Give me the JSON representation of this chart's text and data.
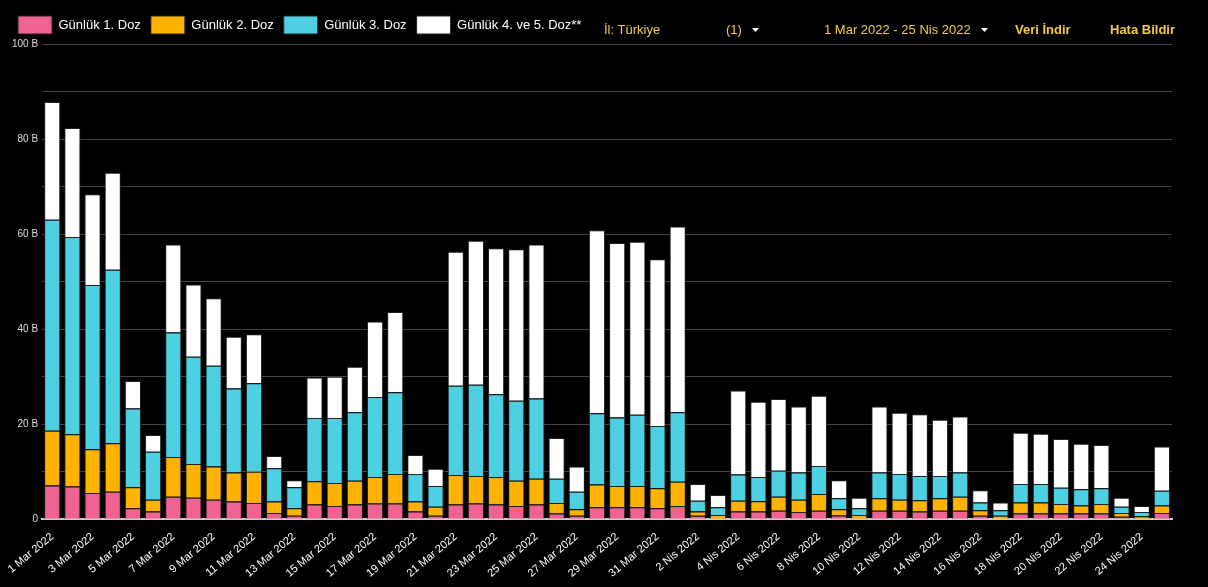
{
  "chart_data": {
    "type": "bar",
    "stacked": true,
    "legend": "top left",
    "grid": "y",
    "categories": [
      "1 Mar 2022",
      null,
      "3 Mar 2022",
      null,
      "5 Mar 2022",
      null,
      "7 Mar 2022",
      null,
      "9 Mar 2022",
      null,
      "11 Mar 2022",
      null,
      "13 Mar 2022",
      null,
      "15 Mar 2022",
      null,
      "17 Mar 2022",
      null,
      "19 Mar 2022",
      null,
      "21 Mar 2022",
      null,
      "23 Mar 2022",
      null,
      "25 Mar 2022",
      null,
      "27 Mar 2022",
      null,
      "29 Mar 2022",
      null,
      "31 Mar 2022",
      null,
      "2 Nis 2022",
      null,
      "4 Nis 2022",
      null,
      "6 Nis 2022",
      null,
      "8 Nis 2022",
      null,
      "10 Nis 2022",
      null,
      "12 Nis 2022",
      null,
      "14 Nis 2022",
      null,
      "16 Nis 2022",
      null,
      "18 Nis 2022",
      null,
      "20 Nis 2022",
      null,
      "22 Nis 2022",
      null,
      "24 Nis 2022",
      null
    ],
    "series": [
      {
        "name": "Günlük 1. Doz",
        "color": "#f06292",
        "values": [
          7.1,
          6.9,
          5.5,
          5.8,
          2.3,
          1.6,
          4.7,
          4.5,
          4.1,
          3.7,
          3.4,
          1.3,
          0.7,
          3.1,
          2.8,
          3.1,
          3.3,
          3.3,
          1.6,
          0.7,
          3.1,
          3.3,
          3.1,
          2.8,
          3.1,
          1.2,
          0.7,
          2.5,
          2.5,
          2.5,
          2.3,
          2.8,
          0.7,
          null,
          1.6,
          1.6,
          1.8,
          1.5,
          1.8,
          0.8,
          null,
          1.8,
          1.8,
          1.6,
          1.8,
          1.8,
          0.7,
          null,
          1.2,
          1.2,
          1.2,
          1.2,
          1.2,
          0.5,
          null,
          1.3
        ]
      },
      {
        "name": "Günlük 2. Doz",
        "color": "#ffb300",
        "values": [
          11.5,
          11.0,
          9.2,
          10.2,
          4.4,
          2.5,
          8.4,
          7.1,
          7.0,
          6.1,
          6.6,
          2.4,
          1.6,
          4.9,
          4.8,
          5.0,
          5.6,
          6.2,
          2.1,
          1.9,
          6.2,
          5.8,
          5.8,
          5.3,
          5.4,
          2.2,
          1.4,
          4.8,
          4.5,
          4.5,
          4.2,
          5.1,
          0.9,
          0.9,
          2.3,
          2.2,
          2.9,
          2.6,
          3.5,
          1.3,
          0.9,
          2.6,
          2.3,
          2.4,
          2.6,
          2.9,
          1.2,
          0.7,
          2.3,
          2.3,
          2.0,
          1.7,
          2.0,
          0.8,
          0.6,
          1.6
        ]
      },
      {
        "name": "Günlük 3. Doz",
        "color": "#4dd0e1",
        "values": [
          44.4,
          41.5,
          34.6,
          36.5,
          16.6,
          10.1,
          26.2,
          22.6,
          21.2,
          17.7,
          18.6,
          7.0,
          4.4,
          13.3,
          13.7,
          14.4,
          16.8,
          17.2,
          5.8,
          4.4,
          18.8,
          19.2,
          17.4,
          16.8,
          16.9,
          5.1,
          3.7,
          15.0,
          14.4,
          15.0,
          13.1,
          14.6,
          2.3,
          1.6,
          5.5,
          5.1,
          5.5,
          5.7,
          5.9,
          2.3,
          1.4,
          5.4,
          5.4,
          5.1,
          4.7,
          5.1,
          1.6,
          1.2,
          3.9,
          3.9,
          3.4,
          3.4,
          3.3,
          1.3,
          0.9,
          3.1
        ]
      },
      {
        "name": "Günlük 4. ve 5. Doz**",
        "color": "#ffffff",
        "values": [
          24.8,
          22.9,
          19.1,
          20.4,
          5.8,
          3.5,
          18.5,
          15.2,
          14.2,
          10.9,
          10.3,
          2.6,
          1.5,
          8.5,
          8.7,
          9.6,
          15.9,
          16.9,
          4.0,
          3.6,
          28.2,
          30.3,
          30.7,
          31.9,
          32.4,
          8.6,
          5.3,
          38.5,
          36.7,
          36.4,
          35.1,
          39.1,
          3.5,
          2.6,
          17.7,
          15.8,
          15.1,
          13.9,
          14.8,
          3.8,
          2.2,
          13.9,
          12.9,
          13.0,
          11.8,
          11.8,
          2.6,
          1.6,
          10.8,
          10.6,
          10.3,
          9.6,
          9.1,
          1.9,
          1.3,
          9.3
        ]
      }
    ],
    "ylim": [
      0,
      100
    ],
    "yticks": [
      0,
      {
        "value": 10,
        "label": null
      },
      {
        "value": 20,
        "label": "20 B"
      },
      {
        "value": 30,
        "label": null
      },
      {
        "value": 40,
        "label": "40 B"
      },
      {
        "value": 50,
        "label": null
      },
      {
        "value": 60,
        "label": "60 B"
      },
      {
        "value": 70,
        "label": null
      },
      {
        "value": 80,
        "label": "80 B"
      },
      {
        "value": 90,
        "label": null
      },
      {
        "value": 100,
        "label": "100 B"
      }
    ],
    "annotations": [
      "İl: Türkiye",
      "(1)",
      "1 Mar 2022 - 25 Nis 2022",
      "Veri İndir",
      "Hata Bildir"
    ]
  }
}
